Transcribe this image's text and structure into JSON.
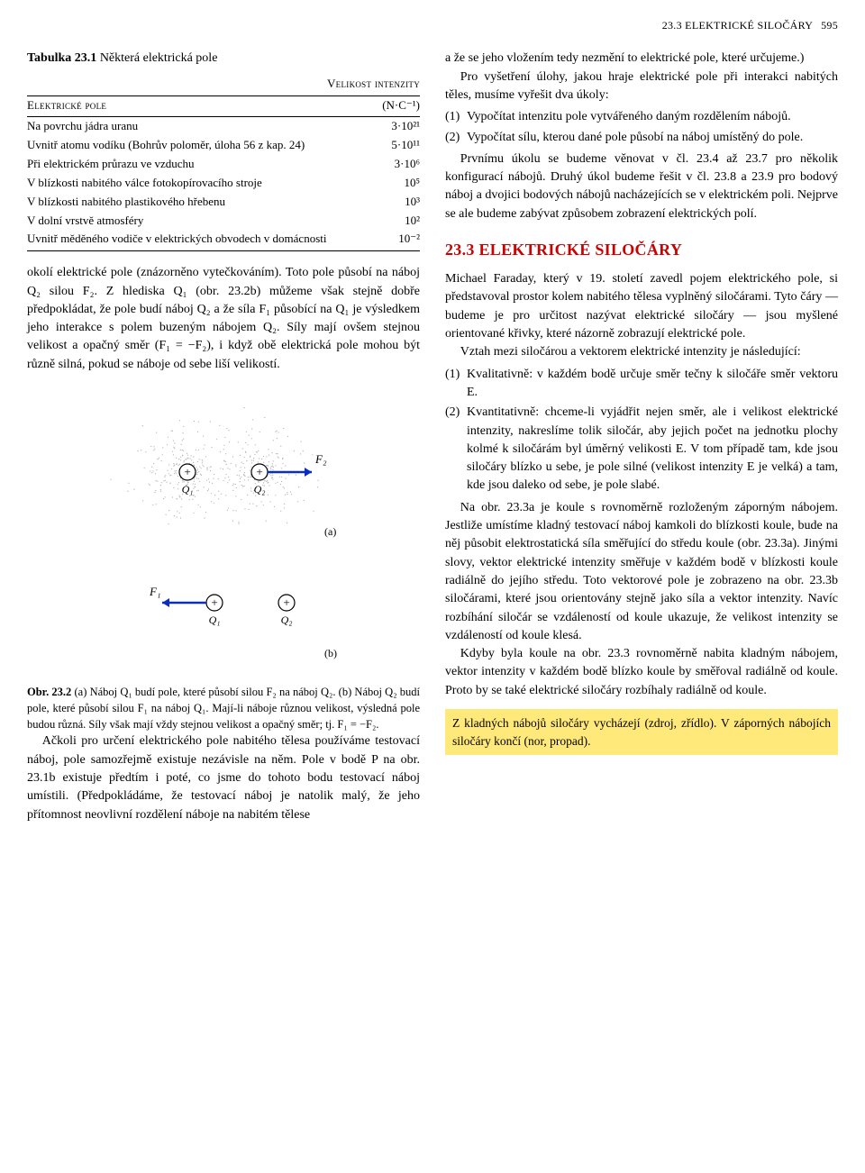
{
  "header": {
    "section_label": "23.3 ELEKTRICKÉ SILOČÁRY",
    "page_number": "595"
  },
  "table": {
    "title_prefix": "Tabulka 23.1",
    "title_rest": " Některá elektrická pole",
    "col1_header": "Elektrické pole",
    "col2_header_line1": "Velikost intenzity",
    "col2_header_line2": "(N·C⁻¹)",
    "rows": [
      {
        "label": "Na povrchu jádra uranu",
        "value": "3·10²¹"
      },
      {
        "label": "Uvnitř atomu vodíku (Bohrův poloměr, úloha 56 z kap. 24)",
        "value": "5·10¹¹"
      },
      {
        "label": "Při elektrickém průrazu ve vzduchu",
        "value": "3·10⁶"
      },
      {
        "label": "V blízkosti nabitého válce fotokopírovacího stroje",
        "value": "10⁵"
      },
      {
        "label": "V blízkosti nabitého plastikového hřebenu",
        "value": "10³"
      },
      {
        "label": "V dolní vrstvě atmosféry",
        "value": "10²"
      },
      {
        "label": "Uvnitř měděného vodiče v elektrických obvodech v domácnosti",
        "value": "10⁻²"
      }
    ]
  },
  "left_paras": {
    "p1": "okolí elektrické pole (znázorněno vytečkováním). Toto pole působí na náboj Q₂ silou F₂. Z hlediska Q₁ (obr. 23.2b) můžeme však stejně dobře předpokládat, že pole budí náboj Q₂ a že síla F₁ působící na Q₁ je výsledkem jeho interakce s polem buzeným nábojem Q₂. Síly mají ovšem stejnou velikost a opačný směr (F₁ = −F₂), i když obě elektrická pole mohou být různě silná, pokud se náboje od sebe liší velikostí.",
    "caption": "Obr. 23.2 (a) Náboj Q₁ budí pole, které působí silou F₂ na náboj Q₂. (b) Náboj Q₂ budí pole, které působí silou F₁ na náboj Q₁. Mají-li náboje různou velikost, výsledná pole budou různá. Síly však mají vždy stejnou velikost a opačný směr; tj. F₁ = −F₂.",
    "p2": "Ačkoli pro určení elektrického pole nabitého tělesa používáme testovací náboj, pole samozřejmě existuje nezávisle na něm. Pole v bodě P na obr. 23.1b existuje předtím i poté, co jsme do tohoto bodu testovací náboj umístili. (Předpokládáme, že testovací náboj je natolik malý, že jeho přítomnost neovlivní rozdělení náboje na nabitém tělese"
  },
  "right_paras": {
    "p1": "a že se jeho vložením tedy nezmění to elektrické pole, které určujeme.)",
    "p2": "Pro vyšetření úlohy, jakou hraje elektrické pole při interakci nabitých těles, musíme vyřešit dva úkoly:",
    "enum1": [
      {
        "n": "(1)",
        "t": "Vypočítat intenzitu pole vytvářeného daným rozdělením nábojů."
      },
      {
        "n": "(2)",
        "t": "Vypočítat sílu, kterou dané pole působí na náboj umístěný do pole."
      }
    ],
    "p3": "Prvnímu úkolu se budeme věnovat v čl. 23.4 až 23.7 pro několik konfigurací nábojů. Druhý úkol budeme řešit v čl. 23.8 a 23.9 pro bodový náboj a dvojici bodových nábojů nacházejících se v elektrickém poli. Nejprve se ale budeme zabývat způsobem zobrazení elektrických polí.",
    "heading": "23.3 ELEKTRICKÉ SILOČÁRY",
    "p4": "Michael Faraday, který v 19. století zavedl pojem elektrického pole, si představoval prostor kolem nabitého tělesa vyplněný siločárami. Tyto čáry — budeme je pro určitost nazývat elektrické siločáry — jsou myšlené orientované křivky, které názorně zobrazují elektrické pole.",
    "p5": "Vztah mezi siločárou a vektorem elektrické intenzity je následující:",
    "enum2": [
      {
        "n": "(1)",
        "t": "Kvalitativně: v každém bodě určuje směr tečny k siločáře směr vektoru E."
      },
      {
        "n": "(2)",
        "t": "Kvantitativně: chceme-li vyjádřit nejen směr, ale i velikost elektrické intenzity, nakreslíme tolik siločár, aby jejich počet na jednotku plochy kolmé k siločárám byl úměrný velikosti E. V tom případě tam, kde jsou siločáry blízko u sebe, je pole silné (velikost intenzity E je velká) a tam, kde jsou daleko od sebe, je pole slabé."
      }
    ],
    "p6": "Na obr. 23.3a je koule s rovnoměrně rozloženým záporným nábojem. Jestliže umístíme kladný testovací náboj kamkoli do blízkosti koule, bude na něj působit elektrostatická síla směřující do středu koule (obr. 23.3a). Jinými slovy, vektor elektrické intenzity směřuje v každém bodě v blízkosti koule radiálně do jejího středu. Toto vektorové pole je zobrazeno na obr. 23.3b siločárami, které jsou orientovány stejně jako síla a vektor intenzity. Navíc rozbíhání siločár se vzdáleností od koule ukazuje, že velikost intenzity se vzdáleností od koule klesá.",
    "p7": "Kdyby byla koule na obr. 23.3 rovnoměrně nabita kladným nábojem, vektor intenzity v každém bodě blízko koule by směřoval radiálně od koule. Proto by se také elektrické siločáry rozbíhaly radiálně od koule.",
    "highlight": "Z kladných nábojů siločáry vycházejí (zdroj, zřídlo). V záporných nábojích siločáry končí (nor, propad)."
  },
  "figure": {
    "labels": {
      "Q1": "Q₁",
      "Q2": "Q₂",
      "F1": "F₁",
      "F2": "F₂",
      "a": "(a)",
      "b": "(b)"
    },
    "colors": {
      "dot": "#b0b0b0",
      "charge_fill": "#ffffff",
      "charge_stroke": "#000000",
      "vector": "#0a2fbf"
    }
  }
}
